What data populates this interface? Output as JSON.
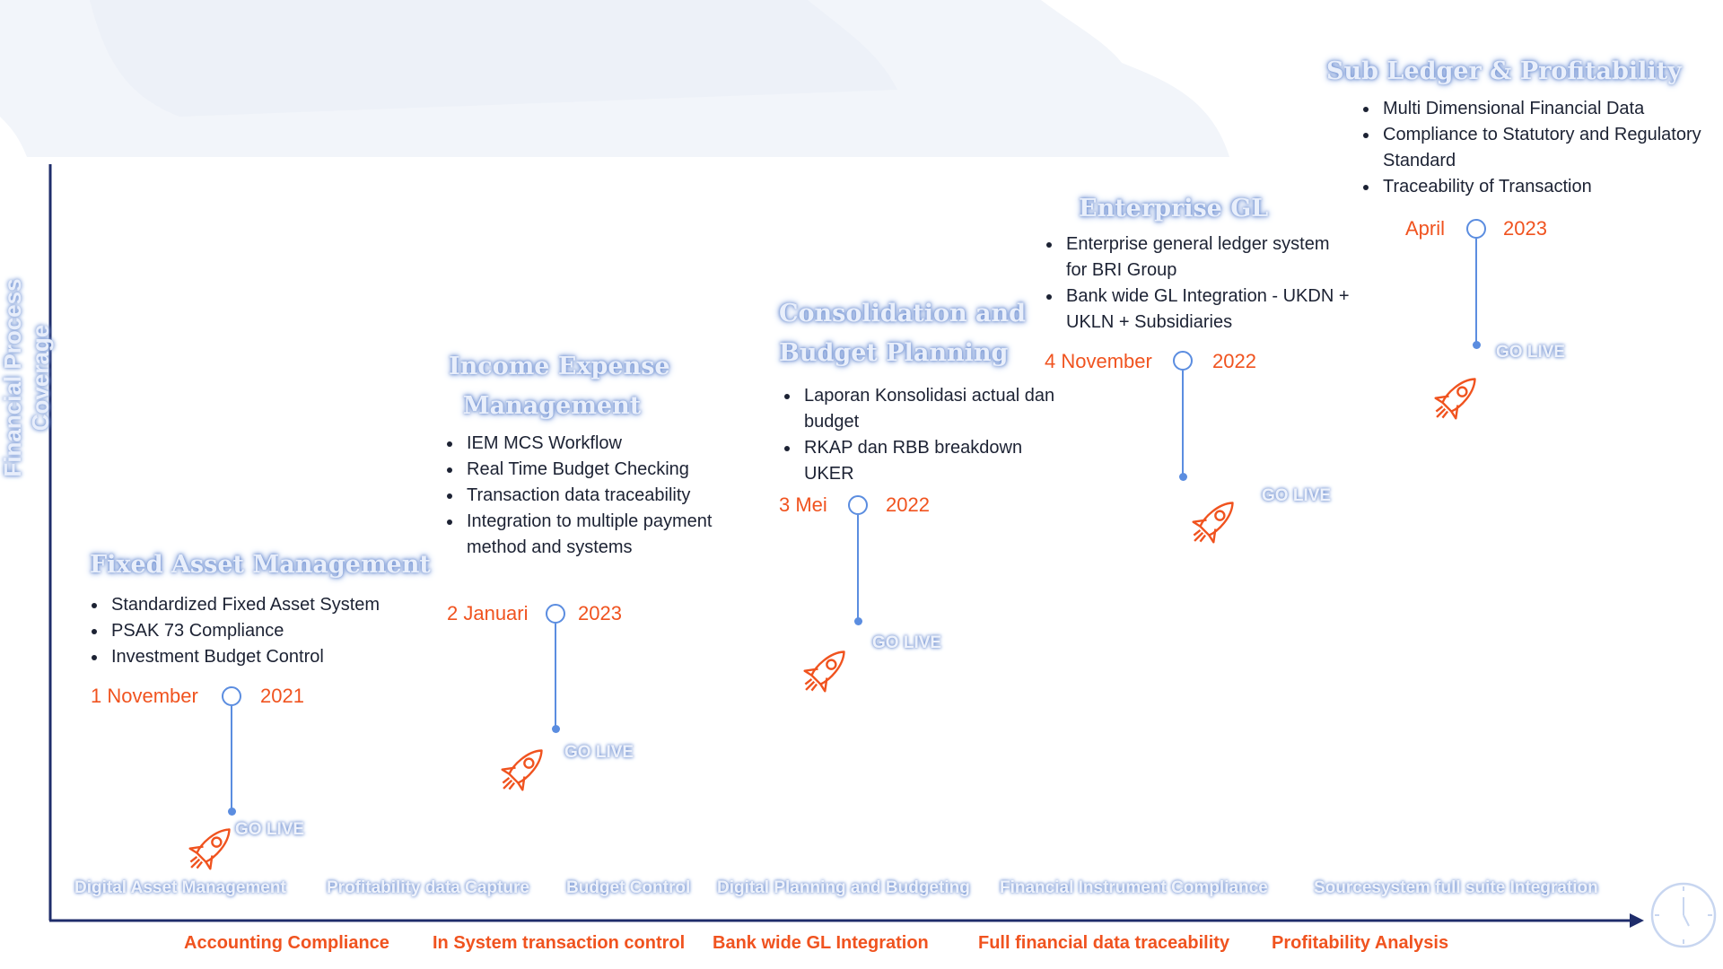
{
  "y_axis_label": "Financial Process Coverage",
  "milestones": [
    {
      "title": "Fixed Asset Management",
      "bullets": [
        "Standardized Fixed Asset System",
        "PSAK 73 Compliance",
        "Investment Budget Control"
      ],
      "date_day": "1 November",
      "date_year": "2021",
      "go_live": "GO LIVE"
    },
    {
      "title_line1": "Income Expense",
      "title_line2": "Management",
      "bullets": [
        "IEM MCS Workflow",
        "Real Time Budget Checking",
        "Transaction data traceability",
        "Integration to multiple payment method and systems"
      ],
      "date_day": "2 Januari",
      "date_year": "2023",
      "go_live": "GO LIVE"
    },
    {
      "title_line1": "Consolidation and",
      "title_line2": "Budget Planning",
      "bullets": [
        "Laporan Konsolidasi actual dan budget",
        "RKAP dan RBB breakdown UKER"
      ],
      "date_day": "3 Mei",
      "date_year": "2022",
      "go_live": "GO LIVE"
    },
    {
      "title": "Enterprise GL",
      "bullets": [
        "Enterprise general ledger system for BRI Group",
        "Bank wide GL Integration - UKDN +  UKLN + Subsidiaries"
      ],
      "date_day": "4 November",
      "date_year": "2022",
      "go_live": "GO LIVE"
    },
    {
      "title": "Sub Ledger & Profitability",
      "bullets": [
        "Multi Dimensional Financial Data",
        "Compliance to Statutory and Regulatory Standard",
        "Traceability of Transaction"
      ],
      "date_day": "April",
      "date_year": "2023",
      "go_live": "GO LIVE"
    }
  ],
  "x_axis_labels": [
    "Digital Asset Management",
    "Profitability data Capture",
    "Budget Control",
    "Digital Planning and Budgeting",
    "Financial Instrument Compliance",
    "Sourcesystem full suite Integration"
  ],
  "bottom_labels": [
    "Accounting Compliance",
    "In System transaction control",
    "Bank wide GL Integration",
    "Full financial data traceability",
    "Profitability Analysis"
  ],
  "colors": {
    "accent_orange": "#f0531f",
    "timeline_blue": "#5b8de0",
    "axis_navy": "#1f2d6b",
    "glow_blue": "#7d9cd8"
  },
  "icons": [
    "rocket-icon",
    "clock-icon"
  ]
}
